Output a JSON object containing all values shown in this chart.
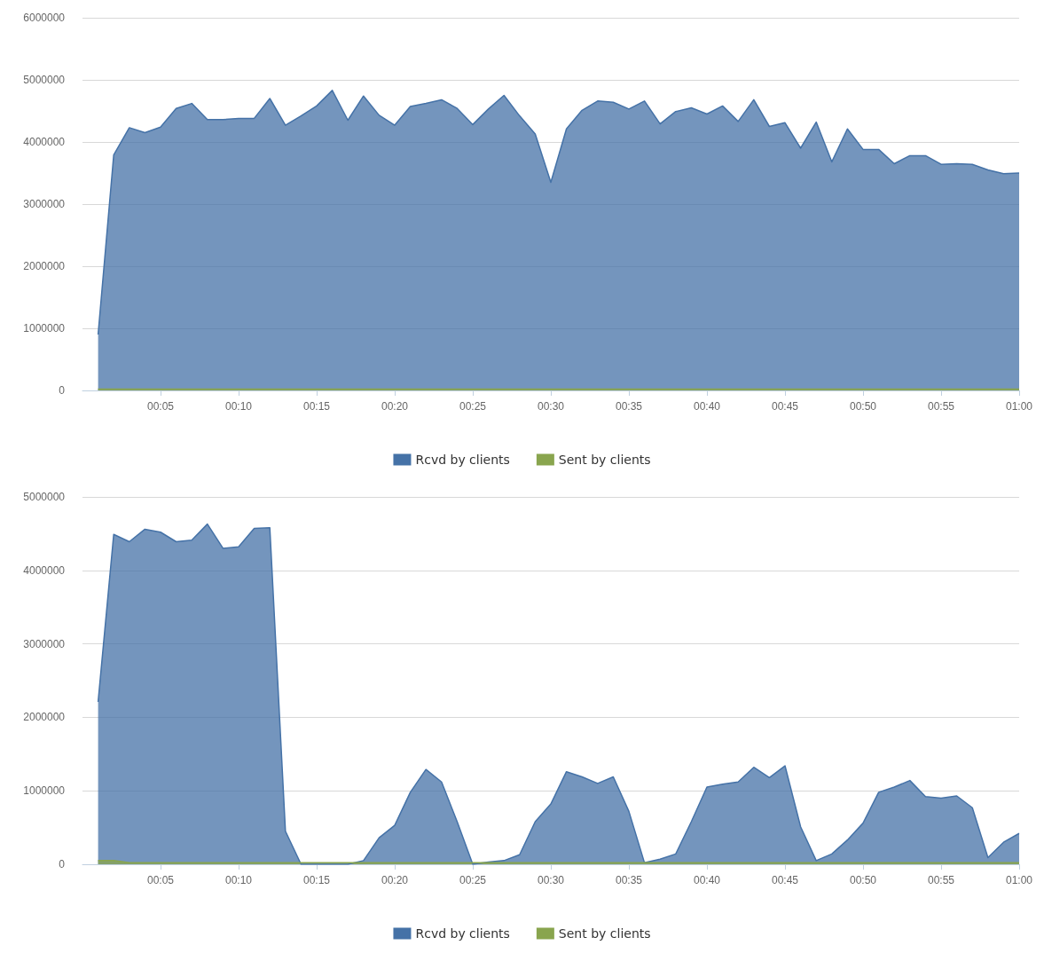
{
  "chart_data": [
    {
      "type": "area",
      "x": [
        1,
        2,
        3,
        4,
        5,
        6,
        7,
        8,
        9,
        10,
        11,
        12,
        13,
        14,
        15,
        16,
        17,
        18,
        19,
        20,
        21,
        22,
        23,
        24,
        25,
        26,
        27,
        28,
        29,
        30,
        31,
        32,
        33,
        34,
        35,
        36,
        37,
        38,
        39,
        40,
        41,
        42,
        43,
        44,
        45,
        46,
        47,
        48,
        49,
        50,
        51,
        52,
        53,
        54,
        55,
        56,
        57,
        58,
        59,
        60
      ],
      "series": [
        {
          "name": "Rcvd by clients",
          "color": "#4572a7",
          "values": [
            900000,
            3790000,
            4230000,
            4150000,
            4240000,
            4540000,
            4620000,
            4360000,
            4360000,
            4380000,
            4380000,
            4700000,
            4270000,
            4420000,
            4580000,
            4830000,
            4350000,
            4740000,
            4430000,
            4270000,
            4570000,
            4620000,
            4680000,
            4540000,
            4280000,
            4530000,
            4750000,
            4420000,
            4130000,
            3350000,
            4210000,
            4510000,
            4660000,
            4640000,
            4530000,
            4660000,
            4290000,
            4490000,
            4550000,
            4450000,
            4580000,
            4330000,
            4680000,
            4250000,
            4310000,
            3900000,
            4320000,
            3680000,
            4210000,
            3880000,
            3880000,
            3650000,
            3780000,
            3780000,
            3640000,
            3650000,
            3640000,
            3550000,
            3490000,
            3500000
          ]
        },
        {
          "name": "Sent by clients",
          "color": "#89a54e",
          "values": [
            20000,
            20000,
            20000,
            20000,
            20000,
            20000,
            20000,
            20000,
            20000,
            20000,
            20000,
            20000,
            20000,
            20000,
            20000,
            20000,
            20000,
            20000,
            20000,
            20000,
            20000,
            20000,
            20000,
            20000,
            20000,
            20000,
            20000,
            20000,
            20000,
            20000,
            20000,
            20000,
            20000,
            20000,
            20000,
            20000,
            20000,
            20000,
            20000,
            20000,
            20000,
            20000,
            20000,
            20000,
            20000,
            20000,
            20000,
            20000,
            20000,
            20000,
            20000,
            20000,
            20000,
            20000,
            20000,
            20000,
            20000,
            20000,
            20000,
            20000
          ]
        }
      ],
      "xlim": [
        0,
        60
      ],
      "xticks": [
        {
          "value": 5,
          "label": "00:05"
        },
        {
          "value": 10,
          "label": "00:10"
        },
        {
          "value": 15,
          "label": "00:15"
        },
        {
          "value": 20,
          "label": "00:20"
        },
        {
          "value": 25,
          "label": "00:25"
        },
        {
          "value": 30,
          "label": "00:30"
        },
        {
          "value": 35,
          "label": "00:35"
        },
        {
          "value": 40,
          "label": "00:40"
        },
        {
          "value": 45,
          "label": "00:45"
        },
        {
          "value": 50,
          "label": "00:50"
        },
        {
          "value": 55,
          "label": "00:55"
        },
        {
          "value": 60,
          "label": "01:00"
        }
      ],
      "ylim": [
        0,
        6000000
      ],
      "yticks": [
        0,
        1000000,
        2000000,
        3000000,
        4000000,
        5000000,
        6000000
      ],
      "grid": "y",
      "legend": "bottom",
      "marker": "none",
      "line_style": "solid"
    },
    {
      "type": "area",
      "x": [
        1,
        2,
        3,
        4,
        5,
        6,
        7,
        8,
        9,
        10,
        11,
        12,
        13,
        14,
        15,
        16,
        17,
        18,
        19,
        20,
        21,
        22,
        23,
        24,
        25,
        26,
        27,
        28,
        29,
        30,
        31,
        32,
        33,
        34,
        35,
        36,
        37,
        38,
        39,
        40,
        41,
        42,
        43,
        44,
        45,
        46,
        47,
        48,
        49,
        50,
        51,
        52,
        53,
        54,
        55,
        56,
        57,
        58,
        59,
        60
      ],
      "series": [
        {
          "name": "Rcvd by clients",
          "color": "#4572a7",
          "values": [
            2210000,
            4490000,
            4390000,
            4560000,
            4520000,
            4390000,
            4410000,
            4630000,
            4300000,
            4320000,
            4570000,
            4580000,
            450000,
            0,
            0,
            0,
            0,
            50000,
            360000,
            530000,
            980000,
            1290000,
            1120000,
            580000,
            0,
            30000,
            50000,
            130000,
            580000,
            820000,
            1260000,
            1190000,
            1100000,
            1190000,
            720000,
            20000,
            70000,
            140000,
            580000,
            1050000,
            1090000,
            1120000,
            1320000,
            1180000,
            1340000,
            510000,
            50000,
            140000,
            330000,
            560000,
            980000,
            1050000,
            1140000,
            920000,
            900000,
            930000,
            770000,
            90000,
            300000,
            420000
          ]
        },
        {
          "name": "Sent by clients",
          "color": "#89a54e",
          "values": [
            50000,
            50000,
            20000,
            20000,
            20000,
            20000,
            20000,
            20000,
            20000,
            20000,
            20000,
            20000,
            20000,
            20000,
            20000,
            20000,
            20000,
            20000,
            20000,
            20000,
            20000,
            20000,
            20000,
            20000,
            20000,
            20000,
            20000,
            20000,
            20000,
            20000,
            20000,
            20000,
            20000,
            20000,
            20000,
            20000,
            20000,
            20000,
            20000,
            20000,
            20000,
            20000,
            20000,
            20000,
            20000,
            20000,
            20000,
            20000,
            20000,
            20000,
            20000,
            20000,
            20000,
            20000,
            20000,
            20000,
            20000,
            20000,
            20000,
            20000
          ]
        }
      ],
      "xlim": [
        0,
        60
      ],
      "xticks": [
        {
          "value": 5,
          "label": "00:05"
        },
        {
          "value": 10,
          "label": "00:10"
        },
        {
          "value": 15,
          "label": "00:15"
        },
        {
          "value": 20,
          "label": "00:20"
        },
        {
          "value": 25,
          "label": "00:25"
        },
        {
          "value": 30,
          "label": "00:30"
        },
        {
          "value": 35,
          "label": "00:35"
        },
        {
          "value": 40,
          "label": "00:40"
        },
        {
          "value": 45,
          "label": "00:45"
        },
        {
          "value": 50,
          "label": "00:50"
        },
        {
          "value": 55,
          "label": "00:55"
        },
        {
          "value": 60,
          "label": "01:00"
        }
      ],
      "ylim": [
        0,
        5000000
      ],
      "yticks": [
        0,
        1000000,
        2000000,
        3000000,
        4000000,
        5000000
      ],
      "grid": "y",
      "legend": "bottom",
      "marker": "none",
      "line_style": "solid"
    }
  ]
}
